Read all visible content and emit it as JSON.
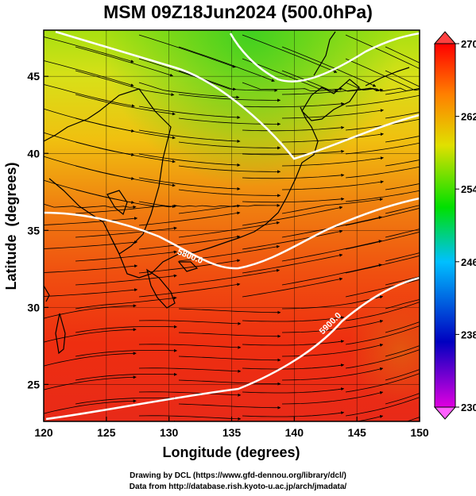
{
  "title": "MSM 09Z18Jun2024 (500.0hPa)",
  "xlabel": "Longitude (degrees)",
  "ylabel": "Latitude  (degrees)",
  "x_ticks": [
    "120",
    "125",
    "130",
    "135",
    "140",
    "145",
    "150"
  ],
  "y_ticks": [
    "25",
    "30",
    "35",
    "40",
    "45"
  ],
  "colorbar_ticks": [
    "270",
    "262",
    "254",
    "246",
    "238",
    "230"
  ],
  "contour_labels": [
    "5900.0",
    "5800.0"
  ],
  "credit_line1": "Drawing by DCL (https://www.gfd-dennou.org/library/dcl/)",
  "credit_line2": "Data from http://database.rish.kyoto-u.ac.jp/arch/jmadata/",
  "map": {
    "lon_range": [
      120,
      150
    ],
    "lat_range": [
      22.6,
      48
    ],
    "colorbar_range": [
      230,
      270
    ],
    "colormap": [
      "#e000e0",
      "#0000c0",
      "#00c0ff",
      "#00e000",
      "#e0e000",
      "#ff8000",
      "#ff0000"
    ]
  }
}
